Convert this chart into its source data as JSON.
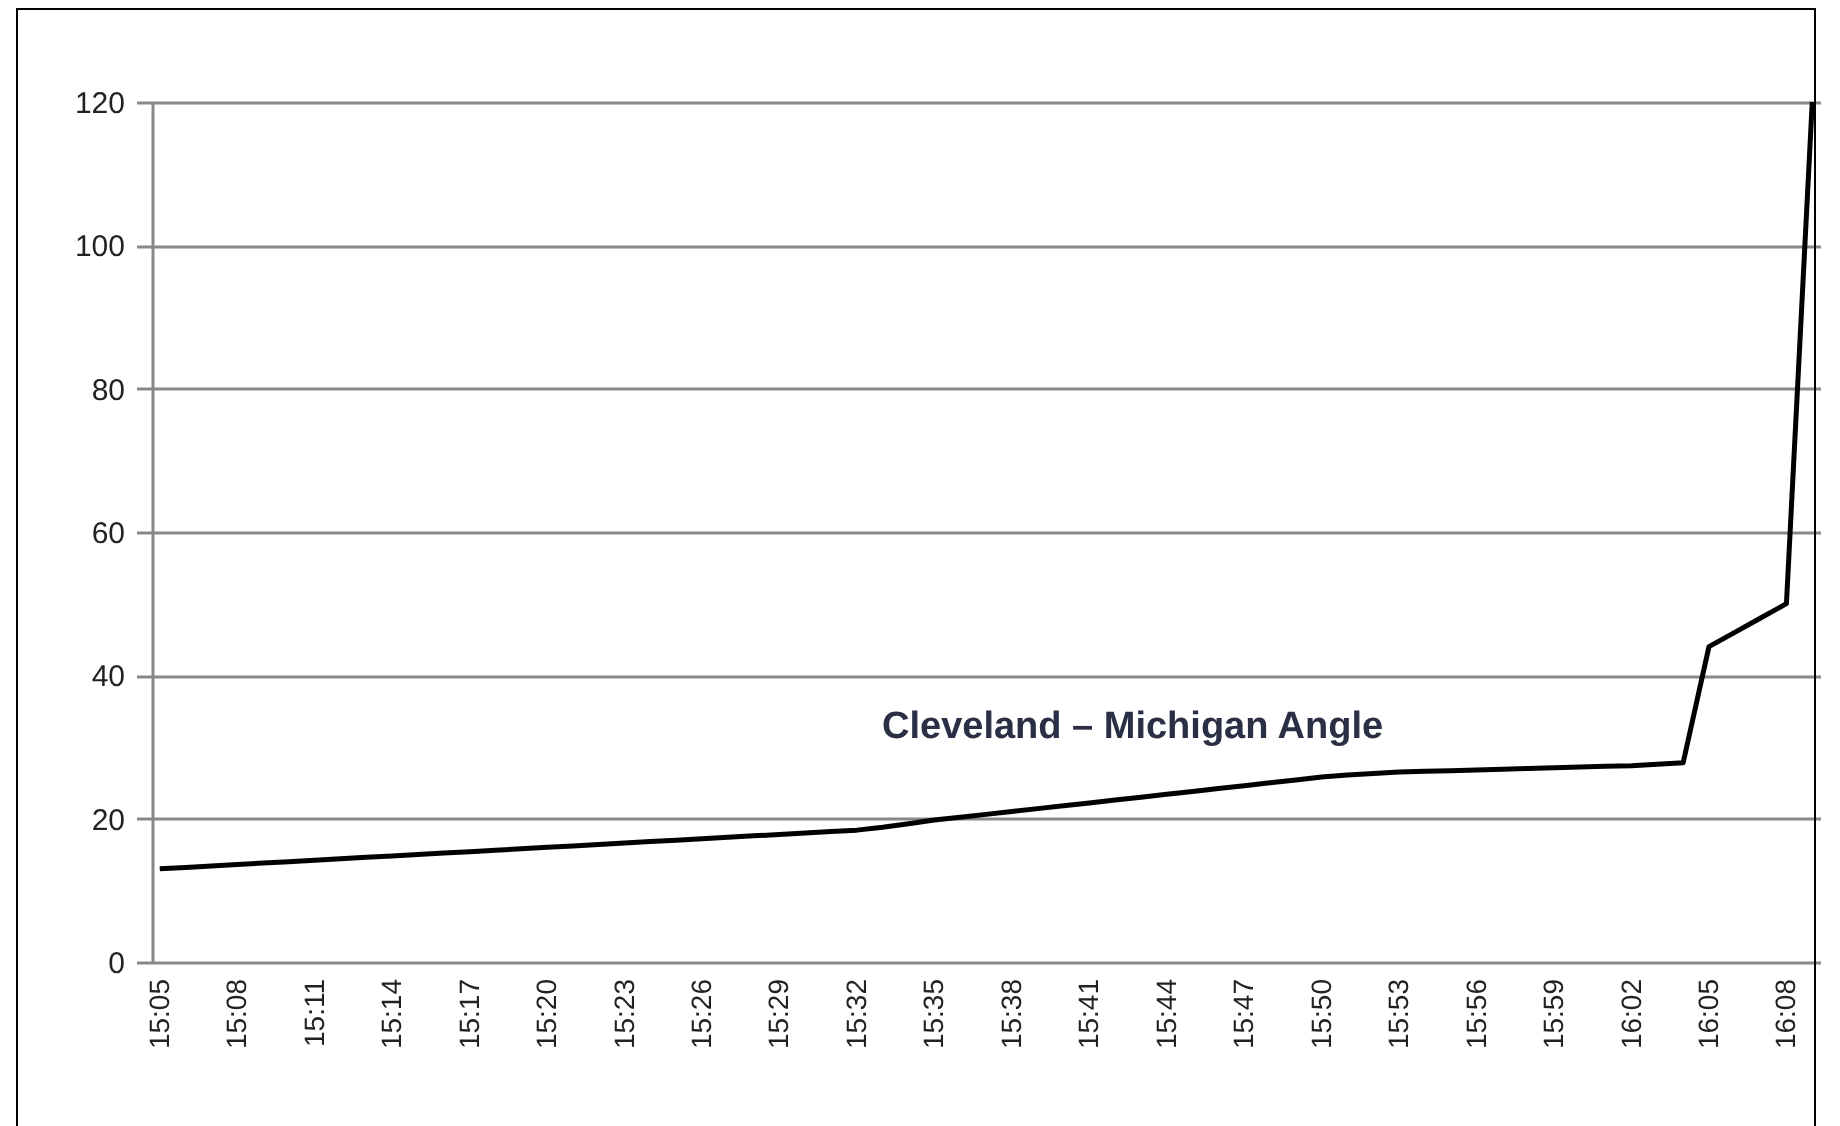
{
  "chart_data": {
    "type": "line",
    "categories": [
      "15:05",
      null,
      null,
      "15:08",
      null,
      null,
      "15:11",
      null,
      null,
      "15:14",
      null,
      null,
      "15:17",
      null,
      null,
      "15:20",
      null,
      null,
      "15:23",
      null,
      null,
      "15:26",
      null,
      null,
      "15:29",
      null,
      null,
      "15:32",
      null,
      null,
      "15:35",
      null,
      null,
      "15:38",
      null,
      null,
      "15:41",
      null,
      null,
      "15:44",
      null,
      null,
      "15:47",
      null,
      null,
      "15:50",
      null,
      null,
      "15:53",
      null,
      null,
      "15:56",
      null,
      null,
      "15:59",
      null,
      null,
      "16:02",
      null,
      null,
      "16:05",
      null,
      null,
      "16:08",
      null
    ],
    "series": [
      {
        "name": "Cleveland – Michigan Angle",
        "color": "#000000",
        "values": [
          13,
          13.2,
          13.4,
          13.6,
          13.8,
          14,
          14.2,
          14.4,
          14.6,
          14.8,
          15,
          15.2,
          15.4,
          15.6,
          15.8,
          16,
          16.2,
          16.4,
          16.6,
          16.8,
          17,
          17.2,
          17.4,
          17.6,
          17.8,
          18,
          18.2,
          18.4,
          18.8,
          19.3,
          19.8,
          20.2,
          20.6,
          21,
          21.4,
          21.8,
          22.2,
          22.6,
          23,
          23.4,
          23.8,
          24.2,
          24.6,
          25,
          25.4,
          25.8,
          26.1,
          26.3,
          26.5,
          26.6,
          26.7,
          26.8,
          26.9,
          27,
          27.1,
          27.2,
          27.3,
          27.4,
          27.6,
          27.8,
          44,
          46,
          48,
          50,
          120
        ]
      }
    ],
    "ylim": [
      0,
      120
    ],
    "yticks": [
      0,
      20,
      40,
      60,
      80,
      100,
      120
    ],
    "grid": "y",
    "marker": "none",
    "line_style": "solid"
  }
}
